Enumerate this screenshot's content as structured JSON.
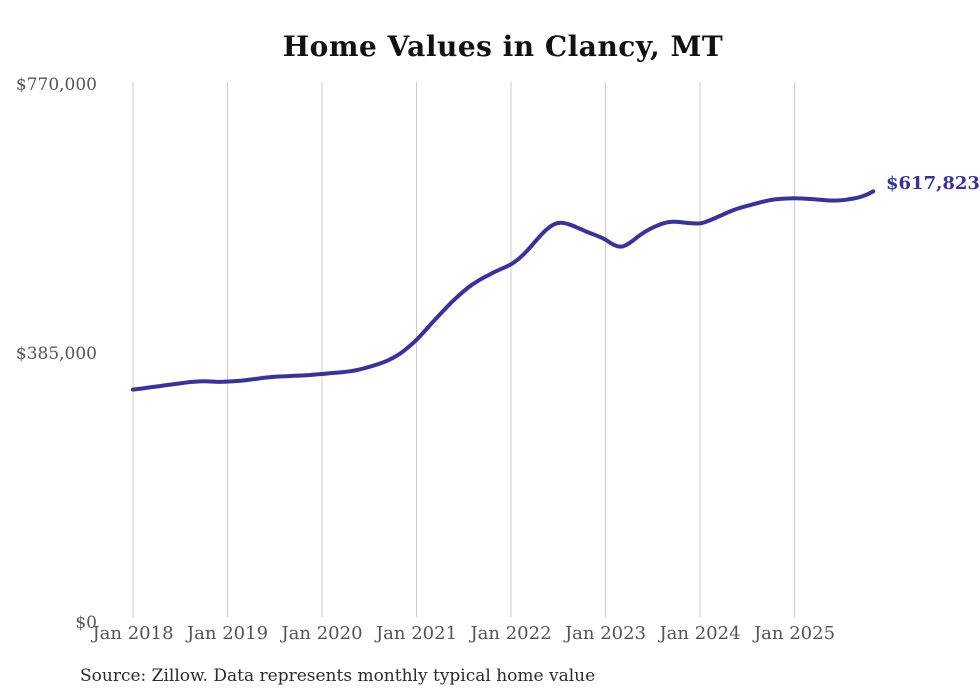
{
  "title": "Home Values in Clancy, MT",
  "source_note": "Source: Zillow. Data represents monthly typical home value",
  "end_label": "$617,823",
  "colors": {
    "line": "#38329e",
    "grid": "#cccccc",
    "axis_text": "#545454",
    "title_text": "#111111",
    "source_text": "#2b2b2b",
    "background": "#ffffff"
  },
  "chart_data": {
    "type": "line",
    "title": "Home Values in Clancy, MT",
    "xlabel": "",
    "ylabel": "",
    "ylim": [
      0,
      770000
    ],
    "grid": "vertical-only",
    "legend": "none",
    "last_value": 617823,
    "last_point_label": "$617,823",
    "y_ticks": [
      {
        "label": "$0",
        "value": 0
      },
      {
        "label": "$385,000",
        "value": 385000
      },
      {
        "label": "$770,000",
        "value": 770000
      }
    ],
    "x_tick_labels": [
      "Jan 2018",
      "Jan 2019",
      "Jan 2020",
      "Jan 2021",
      "Jan 2022",
      "Jan 2023",
      "Jan 2024",
      "Jan 2025"
    ],
    "x": [
      "Jan 2018",
      "Feb 2018",
      "Mar 2018",
      "Apr 2018",
      "May 2018",
      "Jun 2018",
      "Jul 2018",
      "Aug 2018",
      "Sep 2018",
      "Oct 2018",
      "Nov 2018",
      "Dec 2018",
      "Jan 2019",
      "Feb 2019",
      "Mar 2019",
      "Apr 2019",
      "May 2019",
      "Jun 2019",
      "Jul 2019",
      "Aug 2019",
      "Sep 2019",
      "Oct 2019",
      "Nov 2019",
      "Dec 2019",
      "Jan 2020",
      "Feb 2020",
      "Mar 2020",
      "Apr 2020",
      "May 2020",
      "Jun 2020",
      "Jul 2020",
      "Aug 2020",
      "Sep 2020",
      "Oct 2020",
      "Nov 2020",
      "Dec 2020",
      "Jan 2021",
      "Feb 2021",
      "Mar 2021",
      "Apr 2021",
      "May 2021",
      "Jun 2021",
      "Jul 2021",
      "Aug 2021",
      "Sep 2021",
      "Oct 2021",
      "Nov 2021",
      "Dec 2021",
      "Jan 2022",
      "Feb 2022",
      "Mar 2022",
      "Apr 2022",
      "May 2022",
      "Jun 2022",
      "Jul 2022",
      "Aug 2022",
      "Sep 2022",
      "Oct 2022",
      "Nov 2022",
      "Dec 2022",
      "Jan 2023",
      "Feb 2023",
      "Mar 2023",
      "Apr 2023",
      "May 2023",
      "Jun 2023",
      "Jul 2023",
      "Aug 2023",
      "Sep 2023",
      "Oct 2023",
      "Nov 2023",
      "Dec 2023",
      "Jan 2024",
      "Feb 2024",
      "Mar 2024",
      "Apr 2024",
      "May 2024",
      "Jun 2024",
      "Jul 2024",
      "Aug 2024",
      "Sep 2024",
      "Oct 2024",
      "Nov 2024",
      "Dec 2024",
      "Jan 2025",
      "Feb 2025",
      "Mar 2025",
      "Apr 2025",
      "May 2025",
      "Jun 2025",
      "Jul 2025",
      "Aug 2025",
      "Sep 2025",
      "Oct 2025",
      "Nov 2025"
    ],
    "values": [
      334000,
      335500,
      337000,
      338500,
      340000,
      341500,
      343000,
      344500,
      345500,
      346000,
      345500,
      345000,
      345500,
      346000,
      347000,
      348500,
      350000,
      351500,
      352500,
      353000,
      353500,
      354000,
      354500,
      355500,
      356500,
      357500,
      358500,
      359500,
      361000,
      363500,
      366500,
      370000,
      374000,
      379000,
      386000,
      395000,
      405000,
      417000,
      430000,
      442000,
      454000,
      465000,
      475000,
      484000,
      491000,
      497000,
      503000,
      508000,
      513000,
      521000,
      532000,
      545000,
      558000,
      568000,
      573500,
      572000,
      568000,
      563000,
      558000,
      554000,
      549000,
      541000,
      537500,
      543000,
      552000,
      560000,
      566000,
      571000,
      574000,
      574500,
      573000,
      572000,
      571500,
      575000,
      580000,
      585000,
      590000,
      594000,
      597000,
      600000,
      603000,
      605500,
      607000,
      607500,
      608000,
      607500,
      607000,
      606000,
      605000,
      604500,
      605000,
      606500,
      608500,
      612000,
      617823
    ]
  }
}
